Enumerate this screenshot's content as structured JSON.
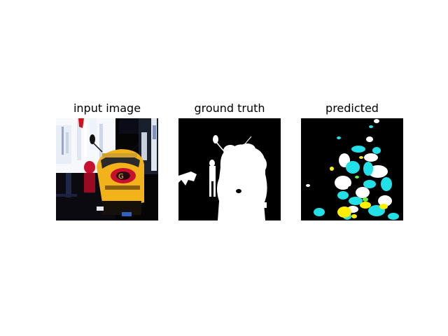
{
  "figure": {
    "panels": [
      {
        "id": "input",
        "title": "input image",
        "content": "photo of a yellow scooter with red emblem on a city street"
      },
      {
        "id": "ground_truth",
        "title": "ground truth",
        "content": "binary segmentation mask (white foreground on black)"
      },
      {
        "id": "predicted",
        "title": "predicted",
        "content": "color segmentation prediction"
      }
    ]
  },
  "colors": {
    "background": "#ffffff",
    "mask_bg": "#000000",
    "mask_fg": "#ffffff",
    "pred_cyan": "#22e0e8",
    "pred_yellow": "#ffee00",
    "pred_green": "#66ee44",
    "scooter_yellow": "#f2b21a",
    "emblem_red": "#c8102e"
  }
}
